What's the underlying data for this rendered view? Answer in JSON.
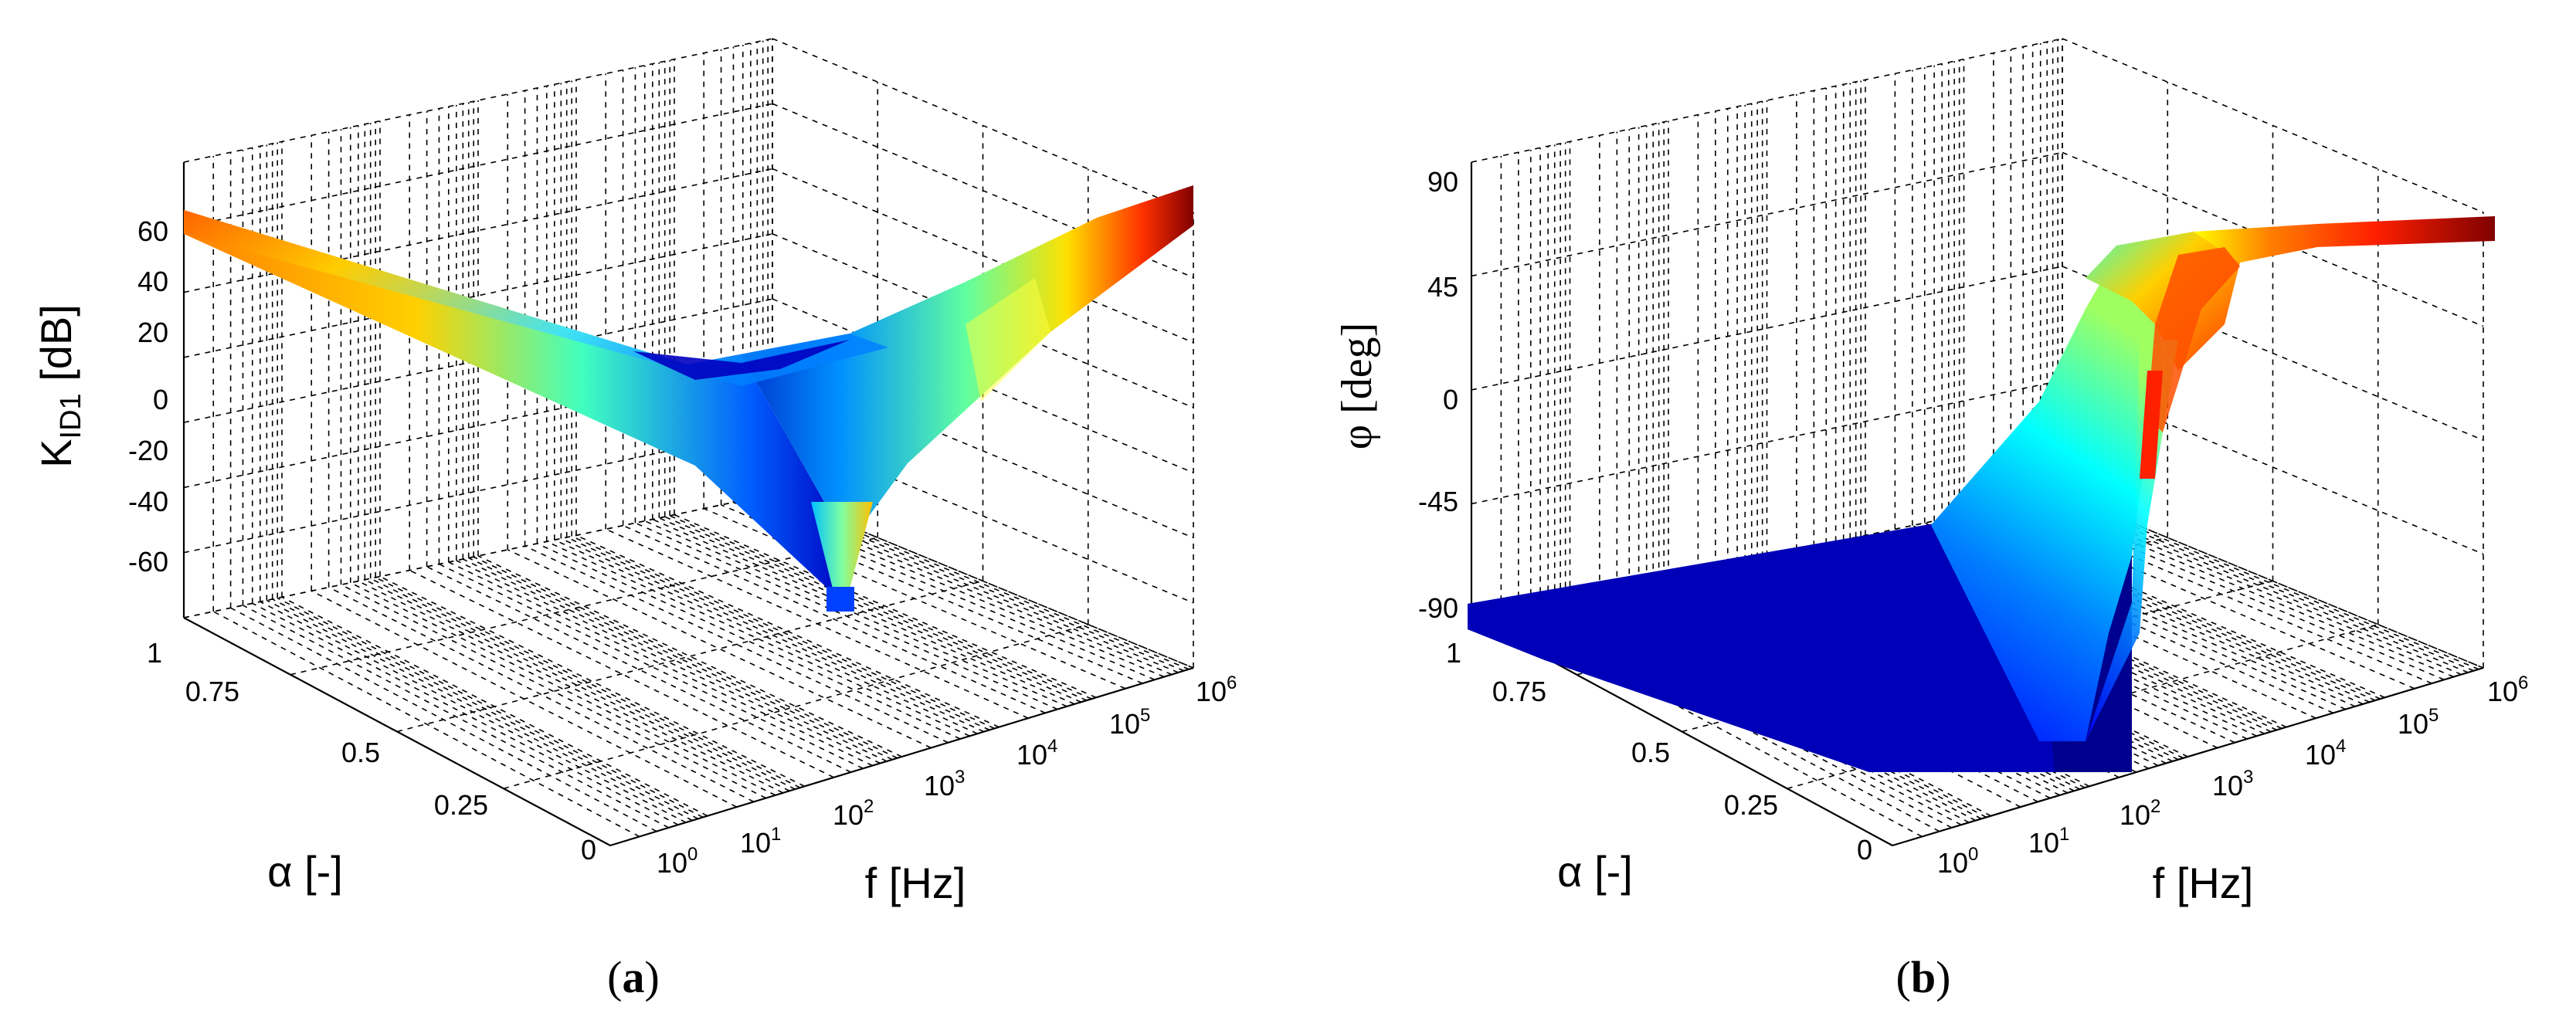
{
  "colormap": [
    "#00008f",
    "#0000ff",
    "#0080ff",
    "#00ffff",
    "#80ff80",
    "#ffff00",
    "#ff8000",
    "#ff0000",
    "#800000"
  ],
  "chart_data": [
    {
      "type": "surface3d",
      "caption_letter": "a",
      "zlabel_main": "K",
      "zlabel_sub": "ID1",
      "zlabel_unit": " [dB]",
      "xlabel": "f [Hz]",
      "ylabel": "α [-]",
      "x_scale": "log",
      "xlim": [
        1,
        1000000
      ],
      "ylim": [
        0,
        1
      ],
      "zlim": [
        -70,
        70
      ],
      "x_ticks": [
        {
          "base": "10",
          "exp": "0"
        },
        {
          "base": "10",
          "exp": "1"
        },
        {
          "base": "10",
          "exp": "2"
        },
        {
          "base": "10",
          "exp": "3"
        },
        {
          "base": "10",
          "exp": "4"
        },
        {
          "base": "10",
          "exp": "5"
        },
        {
          "base": "10",
          "exp": "6"
        }
      ],
      "y_ticks": [
        "0",
        "0.25",
        "0.5",
        "0.75",
        "1"
      ],
      "z_ticks": [
        "-60",
        "-40",
        "-20",
        "0",
        "20",
        "40",
        "60"
      ],
      "grid": true,
      "surface_description": "K = 20*alpha*|log10(f*2*pi) - 2.5| dB-shaped V surface; values rise to about 60 dB at f = 10^0 and about 70 dB at f = 10^6 for alpha = 1, collapsing to -60 dB near f = 10^2.5 at alpha = 0",
      "samples": [
        {
          "f": 1,
          "alpha": 1,
          "K": 60
        },
        {
          "f": 316,
          "alpha": 1,
          "K": 6
        },
        {
          "f": 1000000,
          "alpha": 1,
          "K": 70
        },
        {
          "f": 316,
          "alpha": 0,
          "K": -60
        }
      ]
    },
    {
      "type": "surface3d",
      "caption_letter": "b",
      "zlabel": "φ [deg]",
      "xlabel": "f [Hz]",
      "ylabel": "α [-]",
      "x_scale": "log",
      "xlim": [
        1,
        1000000
      ],
      "ylim": [
        0,
        1
      ],
      "zlim": [
        -90,
        90
      ],
      "x_ticks": [
        {
          "base": "10",
          "exp": "0"
        },
        {
          "base": "10",
          "exp": "1"
        },
        {
          "base": "10",
          "exp": "2"
        },
        {
          "base": "10",
          "exp": "3"
        },
        {
          "base": "10",
          "exp": "4"
        },
        {
          "base": "10",
          "exp": "5"
        },
        {
          "base": "10",
          "exp": "6"
        }
      ],
      "y_ticks": [
        "0",
        "0.25",
        "0.5",
        "0.75",
        "1"
      ],
      "z_ticks": [
        "-90",
        "-45",
        "0",
        "45",
        "90"
      ],
      "grid": true,
      "surface_description": "phase = -90 deg for low frequencies, transitioning through 0 near f = 10^2 and flattening to +90 deg at high frequencies; the transition steepens as alpha increases",
      "samples": [
        {
          "f": 1,
          "alpha": 1,
          "phi": -90
        },
        {
          "f": 100,
          "alpha": 1,
          "phi": 0
        },
        {
          "f": 1000000,
          "alpha": 1,
          "phi": 90
        },
        {
          "f": 100,
          "alpha": 0,
          "phi": -90
        }
      ]
    }
  ]
}
